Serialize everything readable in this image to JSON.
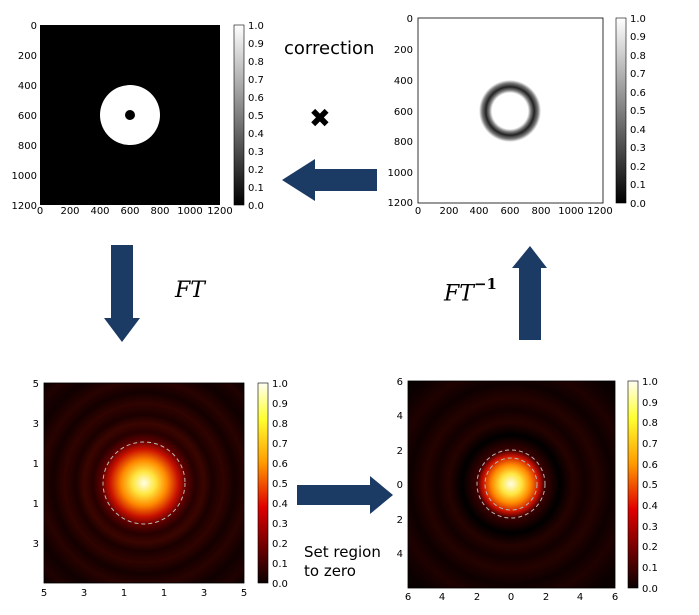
{
  "labels": {
    "correction": "correction",
    "multiply": "✖",
    "ft": "FT",
    "ift_base": "FT",
    "ift_exp": "−1",
    "set_region_line1": "Set region",
    "set_region_line2": "to zero"
  },
  "panels": {
    "top_left": {
      "xticks": [
        "0",
        "200",
        "400",
        "600",
        "800",
        "1000",
        "1200"
      ],
      "yticks": [
        "0",
        "200",
        "400",
        "600",
        "800",
        "1000",
        "1200"
      ],
      "colorbar": [
        "1.0",
        "0.9",
        "0.8",
        "0.7",
        "0.6",
        "0.5",
        "0.4",
        "0.3",
        "0.2",
        "0.1",
        "0.0"
      ]
    },
    "top_right": {
      "xticks": [
        "0",
        "200",
        "400",
        "600",
        "800",
        "1000",
        "1200"
      ],
      "yticks": [
        "0",
        "200",
        "400",
        "600",
        "800",
        "1000",
        "1200"
      ],
      "colorbar": [
        "1.0",
        "0.9",
        "0.8",
        "0.7",
        "0.6",
        "0.5",
        "0.4",
        "0.3",
        "0.2",
        "0.1",
        "0.0"
      ]
    },
    "bottom_left": {
      "xticks": [
        "5",
        "3",
        "1",
        "1",
        "3",
        "5"
      ],
      "yticks": [
        "5",
        "3",
        "1",
        "1",
        "3"
      ],
      "colorbar": [
        "1.0",
        "0.9",
        "0.8",
        "0.7",
        "0.6",
        "0.5",
        "0.4",
        "0.3",
        "0.2",
        "0.1",
        "0.0"
      ]
    },
    "bottom_right": {
      "xticks": [
        "6",
        "4",
        "2",
        "0",
        "2",
        "4",
        "6"
      ],
      "yticks": [
        "6",
        "4",
        "2",
        "0",
        "2",
        "4"
      ],
      "colorbar": [
        "1.0",
        "0.9",
        "0.8",
        "0.7",
        "0.6",
        "0.5",
        "0.4",
        "0.3",
        "0.2",
        "0.1",
        "0.0"
      ]
    }
  },
  "colors": {
    "arrow": "#1b3a64",
    "binary_bg": "#000000",
    "binary_fg": "#ffffff"
  }
}
